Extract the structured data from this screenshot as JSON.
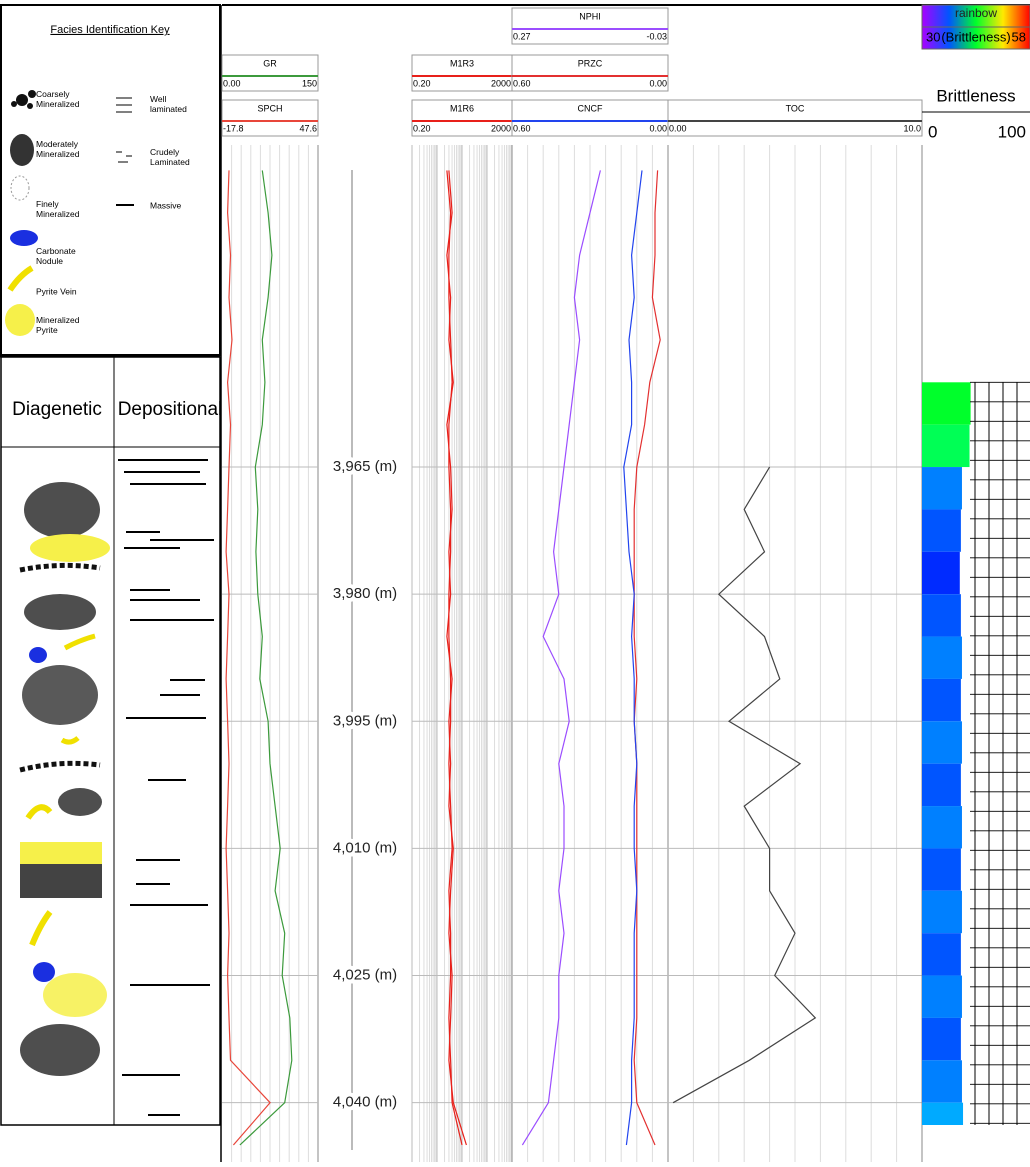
{
  "facies_key": {
    "title": "Facies Identification Key",
    "mineralization": [
      "Coarsely Mineralized",
      "Moderately Mineralized",
      "Finely Mineralized",
      "Carbonate Nodule",
      "Pyrite Vein",
      "Mineralized Pyrite"
    ],
    "lamination": [
      "Well laminated",
      "Crudely Laminated",
      "Massive"
    ]
  },
  "columns": [
    "Diagenetic",
    "Depositional"
  ],
  "chart_data": {
    "type": "line",
    "ylim": [
      3927,
      4047
    ],
    "yticks": [
      {
        "value": 3965,
        "label": "3,965 (m)"
      },
      {
        "value": 3980,
        "label": "3,980 (m)"
      },
      {
        "value": 3995,
        "label": "3,995 (m)"
      },
      {
        "value": 4010,
        "label": "4,010 (m)"
      },
      {
        "value": 4025,
        "label": "4,025 (m)"
      },
      {
        "value": 4040,
        "label": "4,040 (m)"
      }
    ],
    "depth": [
      3930,
      3935,
      3940,
      3945,
      3950,
      3955,
      3960,
      3965,
      3970,
      3975,
      3980,
      3985,
      3990,
      3995,
      4000,
      4005,
      4010,
      4015,
      4020,
      4025,
      4030,
      4035,
      4040,
      4045
    ],
    "tracks": [
      {
        "series": [
          {
            "name": "GR",
            "color": "#3c9a3c",
            "xlim": [
              {
                "value": 0,
                "label": "0.00"
              },
              150
            ],
            "values": [
              63,
              72,
              78,
              72,
              63,
              67,
              63,
              52,
              56,
              53,
              56,
              63,
              59,
              72,
              75,
              83,
              91,
              83,
              98,
              94,
              106,
              109,
              98,
              28
            ]
          },
          {
            "name": "SPCH",
            "color": "#e8463a",
            "xlim": [
              -17.8,
              47.6
            ],
            "values": [
              -13,
              -14,
              -12,
              -13,
              -11,
              -14,
              -12,
              -13,
              -14,
              -15,
              -13,
              -14,
              -15,
              -14,
              -13,
              -14,
              -15,
              -14,
              -13,
              -14,
              -13,
              -12,
              15,
              -10
            ]
          }
        ]
      },
      {
        "log": true,
        "series": [
          {
            "name": "M1R3",
            "color": "#e8201a",
            "xlim": [
              {
                "value": 0.2,
                "label": "0.20"
              },
              2000
            ],
            "values": [
              6,
              8,
              5,
              7,
              6,
              9,
              5,
              7,
              8,
              6,
              7,
              5,
              8,
              6,
              7,
              6,
              9,
              7,
              6,
              8,
              7,
              6,
              9,
              30
            ]
          },
          {
            "name": "M1R6",
            "color": "#e8201a",
            "xlim": [
              {
                "value": 0.2,
                "label": "0.20"
              },
              2000
            ],
            "values": [
              5,
              7,
              6,
              6,
              7,
              8,
              6,
              6,
              7,
              7,
              6,
              6,
              7,
              7,
              6,
              7,
              8,
              6,
              7,
              7,
              6,
              7,
              8,
              20
            ]
          }
        ]
      },
      {
        "series": [
          {
            "name": "NPHI",
            "color": "#9b4dff",
            "xlim": [
              0.27,
              -0.03
            ],
            "values": [
              0.1,
              0.12,
              0.14,
              0.15,
              0.14,
              0.15,
              0.16,
              0.17,
              0.18,
              0.19,
              0.18,
              0.21,
              0.17,
              0.16,
              0.18,
              0.17,
              0.17,
              0.18,
              0.17,
              0.18,
              0.18,
              0.19,
              0.2,
              0.25
            ]
          },
          {
            "name": "PRZC",
            "color": "#e33030",
            "xlim": [
              {
                "value": 0.6,
                "label": "0.60"
              },
              {
                "value": 0,
                "label": "0.00"
              }
            ],
            "values": [
              0.04,
              0.05,
              0.05,
              0.06,
              0.03,
              0.07,
              0.09,
              0.12,
              0.13,
              0.13,
              0.13,
              0.13,
              0.12,
              0.13,
              0.12,
              0.12,
              0.12,
              0.12,
              0.12,
              0.12,
              0.12,
              0.13,
              0.12,
              0.05
            ]
          },
          {
            "name": "CNCF",
            "color": "#2244ee",
            "xlim": [
              {
                "value": 0.6,
                "label": "0.60"
              },
              {
                "value": 0,
                "label": "0.00"
              }
            ],
            "values": [
              0.1,
              0.12,
              0.14,
              0.13,
              0.15,
              0.14,
              0.14,
              0.17,
              0.16,
              0.15,
              0.13,
              0.14,
              0.13,
              0.13,
              0.12,
              0.13,
              0.13,
              0.12,
              0.13,
              0.13,
              0.13,
              0.14,
              0.14,
              0.16
            ]
          }
        ]
      },
      {
        "series": [
          {
            "name": "TOC",
            "color": "#444444",
            "xlim": [
              {
                "value": 0,
                "label": "0.00"
              },
              {
                "value": 10,
                "label": "10.0"
              }
            ],
            "values": [
              null,
              null,
              null,
              null,
              null,
              null,
              null,
              4.0,
              3.0,
              3.8,
              2.0,
              3.8,
              4.4,
              2.4,
              5.2,
              3.0,
              4.0,
              4.0,
              5.0,
              4.2,
              5.8,
              3.2,
              0.2,
              null
            ]
          }
        ]
      }
    ],
    "brittleness": {
      "name": "Brittleness",
      "palette": "rainbow",
      "color_label": "(Brittleness)",
      "color_range": [
        30,
        58
      ],
      "xlim": [
        0,
        100
      ],
      "values": [
        null,
        null,
        null,
        null,
        null,
        45,
        44,
        37,
        36,
        35,
        36,
        37,
        36,
        37,
        36,
        37,
        36,
        37,
        36,
        37,
        36,
        37,
        38,
        55
      ]
    }
  }
}
